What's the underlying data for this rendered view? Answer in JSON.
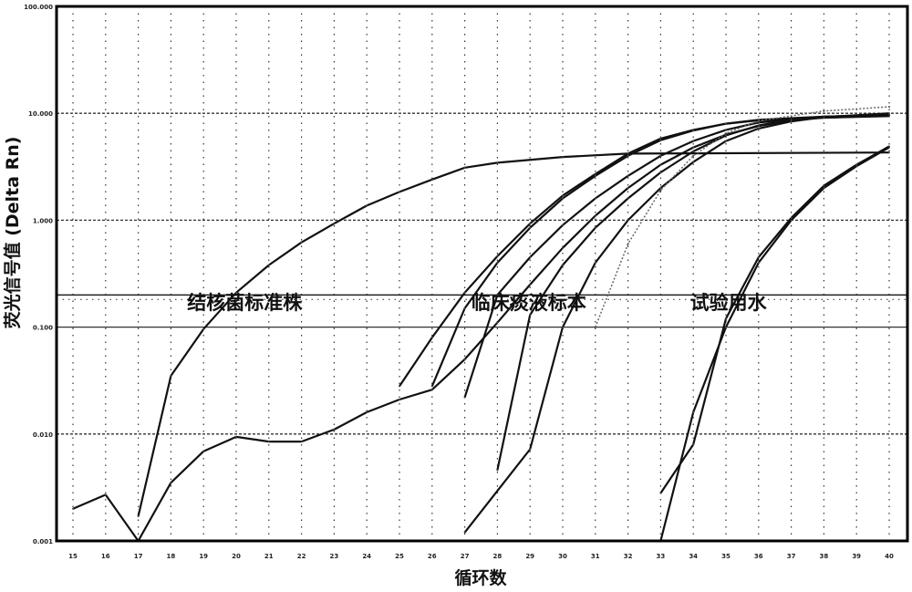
{
  "chart_data": {
    "type": "line",
    "title": "",
    "xlabel": "循环数",
    "ylabel": "荧光信号值 (Delta Rn)",
    "yscale": "log",
    "xlim": [
      15,
      40
    ],
    "ylim": [
      0.001,
      100
    ],
    "grid": true,
    "x_ticks": [
      "15",
      "16",
      "17",
      "18",
      "19",
      "20",
      "21",
      "22",
      "23",
      "24",
      "25",
      "26",
      "27",
      "28",
      "29",
      "30",
      "31",
      "32",
      "33",
      "34",
      "35",
      "36",
      "37",
      "38",
      "39",
      "40"
    ],
    "y_ticks": [
      {
        "value": 100,
        "label": "100.000"
      },
      {
        "value": 10,
        "label": "10.000"
      },
      {
        "value": 1,
        "label": "1.000"
      },
      {
        "value": 0.1,
        "label": "0.100"
      },
      {
        "value": 0.01,
        "label": "0.010"
      },
      {
        "value": 0.001,
        "label": "0.001"
      }
    ],
    "threshold": 0.2,
    "annotations": [
      {
        "text": "结核菌标准株",
        "x": 18.5,
        "y": 0.15
      },
      {
        "text": "临床痰液标本",
        "x": 27.2,
        "y": 0.15
      },
      {
        "text": "试验用水",
        "x": 33.9,
        "y": 0.15
      }
    ],
    "series": [
      {
        "name": "standard-strain",
        "group": "结核菌标准株",
        "dotted": false,
        "points": [
          [
            17,
            0.0017
          ],
          [
            18,
            0.035
          ],
          [
            19,
            0.096
          ],
          [
            20,
            0.21
          ],
          [
            21,
            0.38
          ],
          [
            22,
            0.62
          ],
          [
            23,
            0.93
          ],
          [
            24,
            1.37
          ],
          [
            25,
            1.84
          ],
          [
            26,
            2.4
          ],
          [
            27,
            3.1
          ],
          [
            28,
            3.45
          ],
          [
            30,
            3.9
          ],
          [
            32,
            4.2
          ],
          [
            40,
            4.3
          ]
        ]
      },
      {
        "name": "clinical-1",
        "group": "临床痰液标本",
        "dotted": false,
        "points": [
          [
            15,
            0.002
          ],
          [
            16,
            0.0027
          ],
          [
            17,
            0.001
          ],
          [
            18,
            0.0035
          ],
          [
            19,
            0.0069
          ],
          [
            20,
            0.0094
          ],
          [
            21,
            0.0085
          ],
          [
            22,
            0.0085
          ],
          [
            23,
            0.011
          ],
          [
            24,
            0.016
          ],
          [
            25,
            0.021
          ],
          [
            26,
            0.026
          ],
          [
            27,
            0.05
          ],
          [
            28,
            0.11
          ],
          [
            29,
            0.25
          ],
          [
            30,
            0.55
          ],
          [
            31,
            1.1
          ],
          [
            32,
            2.0
          ],
          [
            33,
            3.3
          ],
          [
            34,
            4.8
          ],
          [
            35,
            6.3
          ],
          [
            36,
            7.6
          ],
          [
            37,
            8.6
          ],
          [
            38,
            9.1
          ],
          [
            40,
            9.5
          ]
        ]
      },
      {
        "name": "clinical-2",
        "group": "临床痰液标本",
        "dotted": false,
        "points": [
          [
            25,
            0.028
          ],
          [
            26,
            0.08
          ],
          [
            27,
            0.21
          ],
          [
            28,
            0.46
          ],
          [
            29,
            0.93
          ],
          [
            30,
            1.7
          ],
          [
            31,
            2.7
          ],
          [
            32,
            4.2
          ],
          [
            33,
            5.8
          ],
          [
            34,
            7.0
          ],
          [
            35,
            8.0
          ],
          [
            36,
            8.6
          ],
          [
            37,
            8.9
          ],
          [
            38,
            9.1
          ],
          [
            40,
            9.4
          ]
        ]
      },
      {
        "name": "clinical-3",
        "group": "临床痰液标本",
        "dotted": false,
        "points": [
          [
            26,
            0.028
          ],
          [
            27,
            0.15
          ],
          [
            28,
            0.4
          ],
          [
            29,
            0.85
          ],
          [
            30,
            1.6
          ],
          [
            31,
            2.6
          ],
          [
            32,
            4.0
          ],
          [
            33,
            5.6
          ],
          [
            34,
            6.9
          ],
          [
            35,
            8.0
          ],
          [
            36,
            8.7
          ],
          [
            38,
            9.3
          ],
          [
            40,
            9.6
          ]
        ]
      },
      {
        "name": "clinical-4",
        "group": "临床痰液标本",
        "dotted": false,
        "points": [
          [
            27,
            0.022
          ],
          [
            28,
            0.2
          ],
          [
            29,
            0.45
          ],
          [
            30,
            0.9
          ],
          [
            31,
            1.6
          ],
          [
            32,
            2.6
          ],
          [
            33,
            4.0
          ],
          [
            34,
            5.5
          ],
          [
            35,
            7.0
          ],
          [
            36,
            8.2
          ],
          [
            38,
            9.3
          ],
          [
            40,
            9.7
          ]
        ]
      },
      {
        "name": "clinical-5",
        "group": "临床痰液标本",
        "dotted": false,
        "points": [
          [
            28,
            0.0046
          ],
          [
            29,
            0.13
          ],
          [
            30,
            0.38
          ],
          [
            31,
            0.85
          ],
          [
            32,
            1.6
          ],
          [
            33,
            2.8
          ],
          [
            34,
            4.4
          ],
          [
            35,
            6.2
          ],
          [
            36,
            7.7
          ],
          [
            37,
            8.7
          ],
          [
            38,
            9.2
          ],
          [
            40,
            9.8
          ]
        ]
      },
      {
        "name": "clinical-6",
        "group": "临床痰液标本",
        "dotted": false,
        "points": [
          [
            27,
            0.0012
          ],
          [
            29,
            0.0072
          ],
          [
            30,
            0.1
          ],
          [
            31,
            0.4
          ],
          [
            32,
            1.0
          ],
          [
            33,
            2.0
          ],
          [
            34,
            3.5
          ],
          [
            35,
            5.5
          ],
          [
            36,
            7.2
          ],
          [
            37,
            8.4
          ],
          [
            38,
            9.2
          ],
          [
            40,
            10.0
          ]
        ]
      },
      {
        "name": "clinical-7",
        "group": "临床痰液标本",
        "dotted": true,
        "points": [
          [
            31,
            0.1
          ],
          [
            32,
            0.6
          ],
          [
            33,
            1.9
          ],
          [
            34,
            4.0
          ],
          [
            35,
            6.5
          ],
          [
            36,
            8.5
          ],
          [
            38,
            10.5
          ],
          [
            40,
            11.5
          ]
        ]
      },
      {
        "name": "water-1",
        "group": "试验用水",
        "dotted": false,
        "points": [
          [
            33,
            0.001
          ],
          [
            34,
            0.016
          ],
          [
            35,
            0.1
          ],
          [
            36,
            0.4
          ],
          [
            37,
            1.0
          ],
          [
            38,
            2.0
          ],
          [
            39,
            3.2
          ],
          [
            40,
            4.8
          ]
        ]
      },
      {
        "name": "water-2",
        "group": "试验用水",
        "dotted": false,
        "points": [
          [
            33,
            0.0028
          ],
          [
            34,
            0.008
          ],
          [
            35,
            0.12
          ],
          [
            36,
            0.45
          ],
          [
            37,
            1.05
          ],
          [
            38,
            2.1
          ],
          [
            39,
            3.3
          ],
          [
            40,
            4.9
          ]
        ]
      }
    ]
  }
}
